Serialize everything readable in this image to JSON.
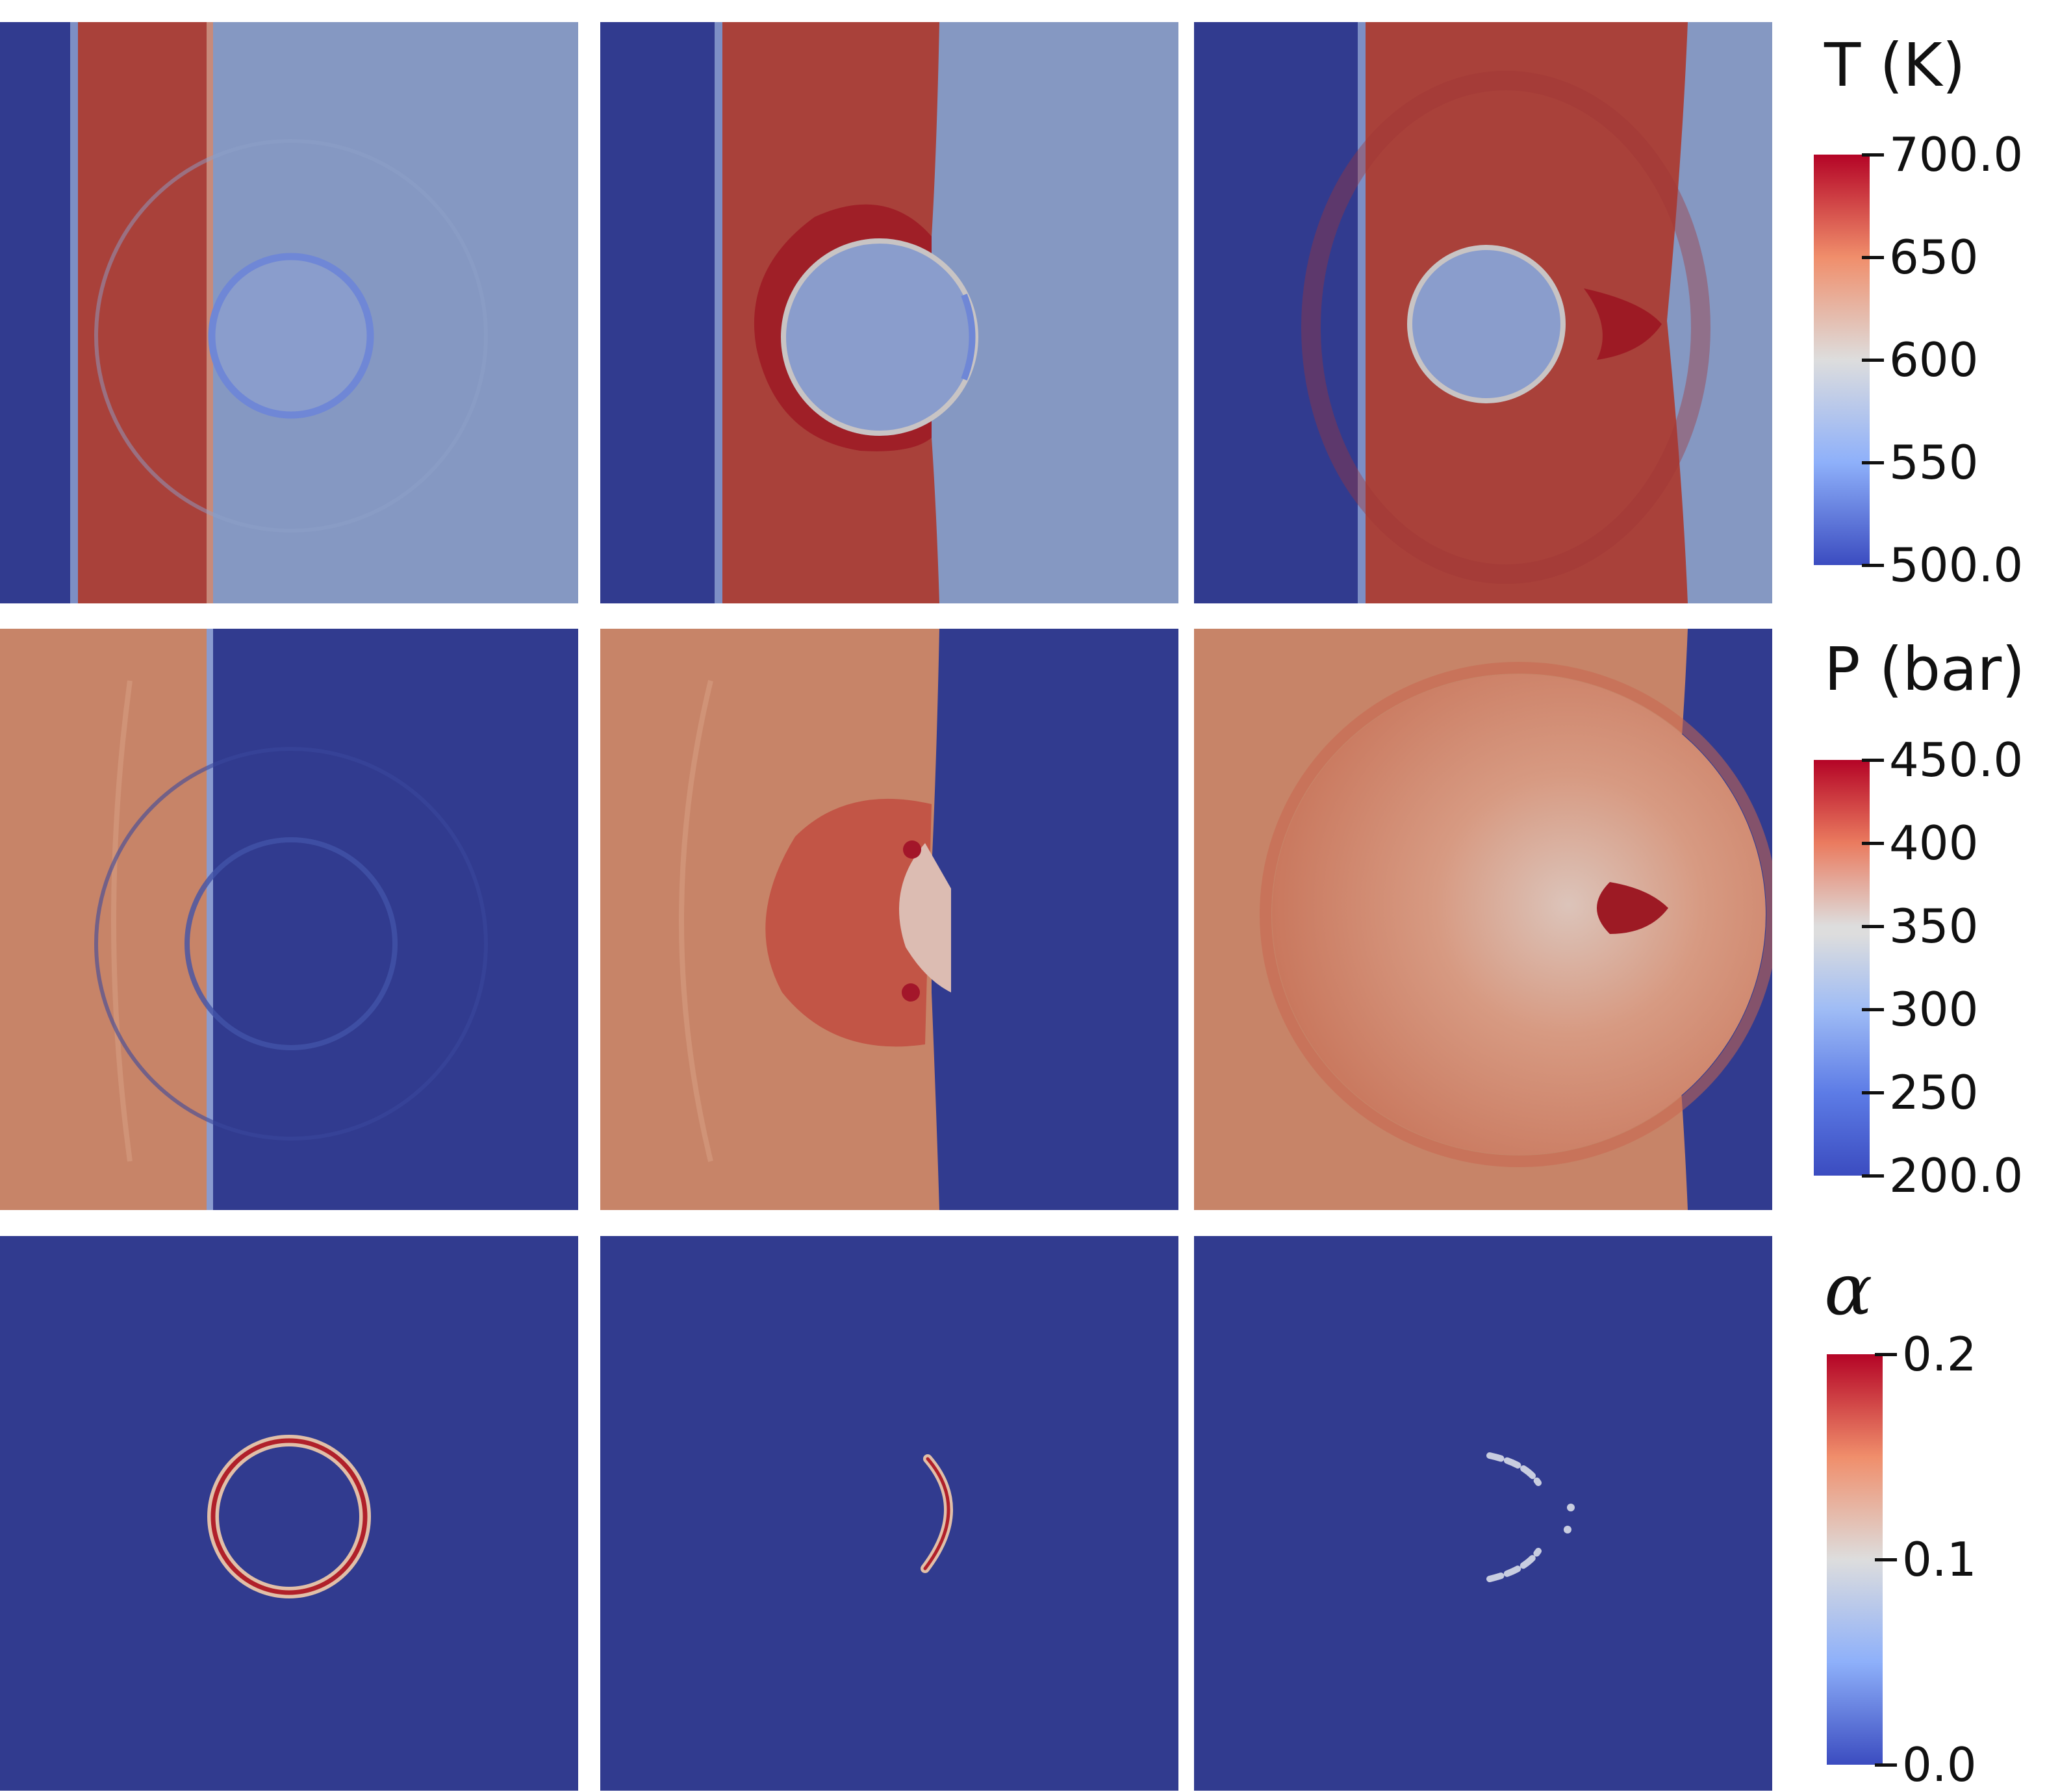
{
  "colormap": {
    "low": "#3b4cc0",
    "mid": "#dddddd",
    "high": "#b40426",
    "field_background": "#313b8f"
  },
  "colorbars": [
    {
      "id": "temperature",
      "title": "T (K)",
      "title_style": "plain",
      "ticks": [
        "700.0",
        "650",
        "600",
        "550",
        "500.0"
      ]
    },
    {
      "id": "pressure",
      "title": "P (bar)",
      "title_style": "plain",
      "ticks": [
        "450.0",
        "400",
        "350",
        "300",
        "250",
        "200.0"
      ]
    },
    {
      "id": "void-fraction",
      "title": "α",
      "title_style": "italic-math",
      "ticks": [
        "0.2",
        "0.1",
        "0.0"
      ]
    }
  ],
  "panels": [
    {
      "row": "temperature",
      "frame": 1
    },
    {
      "row": "temperature",
      "frame": 2
    },
    {
      "row": "temperature",
      "frame": 3
    },
    {
      "row": "pressure",
      "frame": 1
    },
    {
      "row": "pressure",
      "frame": 2
    },
    {
      "row": "pressure",
      "frame": 3
    },
    {
      "row": "void-fraction",
      "frame": 1
    },
    {
      "row": "void-fraction",
      "frame": 2
    },
    {
      "row": "void-fraction",
      "frame": 3
    }
  ]
}
